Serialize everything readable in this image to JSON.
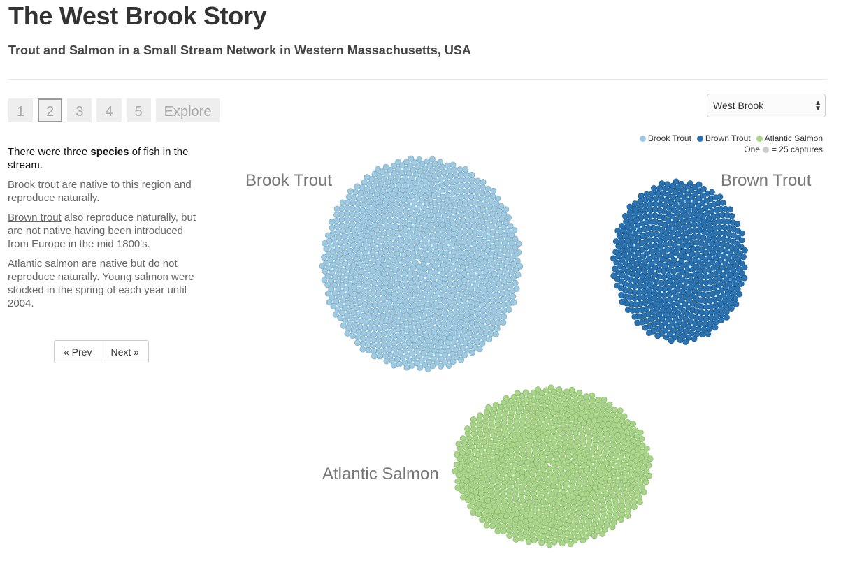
{
  "header": {
    "title": "The West Brook Story",
    "subtitle": "Trout and Salmon in a Small Stream Network in Western Massachusetts, USA"
  },
  "pager": {
    "pages": [
      "1",
      "2",
      "3",
      "4",
      "5",
      "Explore"
    ],
    "active": "2"
  },
  "story": {
    "intro_pre": "There were three ",
    "intro_bold": "species",
    "intro_post": " of fish in the stream.",
    "p1_link": "Brook trout",
    "p1_text": " are native to this region and reproduce naturally.",
    "p2_link": "Brown trout",
    "p2_text": " also reproduce naturally, but are not native having been introduced from Europe in the mid 1800's.",
    "p3_link": "Atlantic salmon",
    "p3_text": " are native but do not reproduce naturally. Young salmon were stocked in the spring of each year until 2004."
  },
  "nav": {
    "prev_label": "« Prev",
    "next_label": "Next »"
  },
  "river_select": {
    "value": "West Brook",
    "arrow_up": "▲",
    "arrow_down": "▼"
  },
  "legend": {
    "items": [
      {
        "label": "Brook Trout",
        "color": "#9ecae1"
      },
      {
        "label": "Brown Trout",
        "color": "#2b72b0"
      },
      {
        "label": "Atlantic Salmon",
        "color": "#a9d48a"
      }
    ],
    "scale_pre": "One",
    "scale_post": "= 25 captures",
    "scale_color": "#cccccc"
  },
  "chart_data": {
    "type": "scatter",
    "title": "",
    "unit": "One dot = 25 captures",
    "series": [
      {
        "name": "Brook Trout",
        "label": "Brook Trout",
        "color": "#9ecae1",
        "stroke": "#7fa9c4",
        "dots": 1150
      },
      {
        "name": "Brown Trout",
        "label": "Brown Trout",
        "color": "#2b72b0",
        "stroke": "#1c5a8f",
        "dots": 610
      },
      {
        "name": "Atlantic Salmon",
        "label": "Atlantic Salmon",
        "color": "#a9d48a",
        "stroke": "#86b868",
        "dots": 880
      }
    ]
  }
}
